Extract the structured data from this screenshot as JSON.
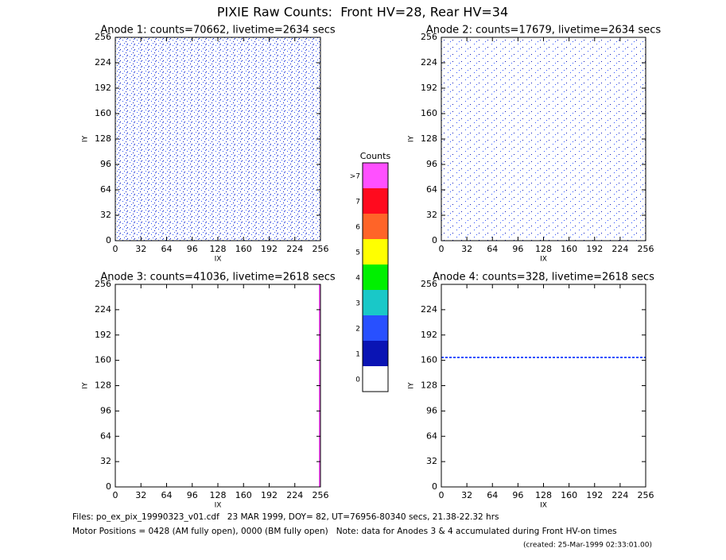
{
  "title": "PIXIE Raw Counts:  Front HV=28, Rear HV=34",
  "chart_data": [
    {
      "type": "heatmap",
      "title": "Anode 1: counts=70662, livetime=2634 secs",
      "x_label": "IX",
      "y_label": "IY",
      "xlim": [
        0,
        256
      ],
      "ylim": [
        0,
        256
      ],
      "xticks": [
        0,
        32,
        64,
        96,
        128,
        160,
        192,
        224,
        256
      ],
      "yticks": [
        0,
        32,
        64,
        96,
        128,
        160,
        192,
        224,
        256
      ]
    },
    {
      "type": "heatmap",
      "title": "Anode 2: counts=17679, livetime=2634 secs",
      "x_label": "IX",
      "y_label": "IY",
      "xlim": [
        0,
        256
      ],
      "ylim": [
        0,
        256
      ],
      "xticks": [
        0,
        32,
        64,
        96,
        128,
        160,
        192,
        224,
        256
      ],
      "yticks": [
        0,
        32,
        64,
        96,
        128,
        160,
        192,
        224,
        256
      ]
    },
    {
      "type": "heatmap",
      "title": "Anode 3: counts=41036, livetime=2618 secs",
      "x_label": "IX",
      "y_label": "IY",
      "xlim": [
        0,
        256
      ],
      "ylim": [
        0,
        256
      ],
      "xticks": [
        0,
        32,
        64,
        96,
        128,
        160,
        192,
        224,
        256
      ],
      "yticks": [
        0,
        32,
        64,
        96,
        128,
        160,
        192,
        224,
        256
      ]
    },
    {
      "type": "heatmap",
      "title": "Anode 4: counts=328, livetime=2618 secs",
      "x_label": "IX",
      "y_label": "IY",
      "xlim": [
        0,
        256
      ],
      "ylim": [
        0,
        256
      ],
      "xticks": [
        0,
        32,
        64,
        96,
        128,
        160,
        192,
        224,
        256
      ],
      "yticks": [
        0,
        32,
        64,
        96,
        128,
        160,
        192,
        224,
        256
      ]
    }
  ],
  "colorbar": {
    "title": "Counts",
    "levels": [
      {
        "label": "0",
        "color": "#ffffff"
      },
      {
        "label": "1",
        "color": "#0a14b4"
      },
      {
        "label": "2",
        "color": "#2850ff"
      },
      {
        "label": "3",
        "color": "#19c8c8"
      },
      {
        "label": "4",
        "color": "#00f000"
      },
      {
        "label": "5",
        "color": "#ffff00"
      },
      {
        "label": "6",
        "color": "#ff6428"
      },
      {
        "label": "7",
        "color": "#ff0a1e"
      },
      {
        "label": ">7",
        "color": "#ff50ff"
      }
    ]
  },
  "footer": [
    "Files: po_ex_pix_19990323_v01.cdf   23 MAR 1999, DOY= 82, UT=76956-80340 secs, 21.38-22.32 hrs",
    "Motor Positions = 0428 (AM fully open), 0000 (BM fully open)   Note: data for Anodes 3 & 4 accumulated during Front HV-on times",
    "(created: 25-Mar-1999 02:33:01.00)"
  ]
}
